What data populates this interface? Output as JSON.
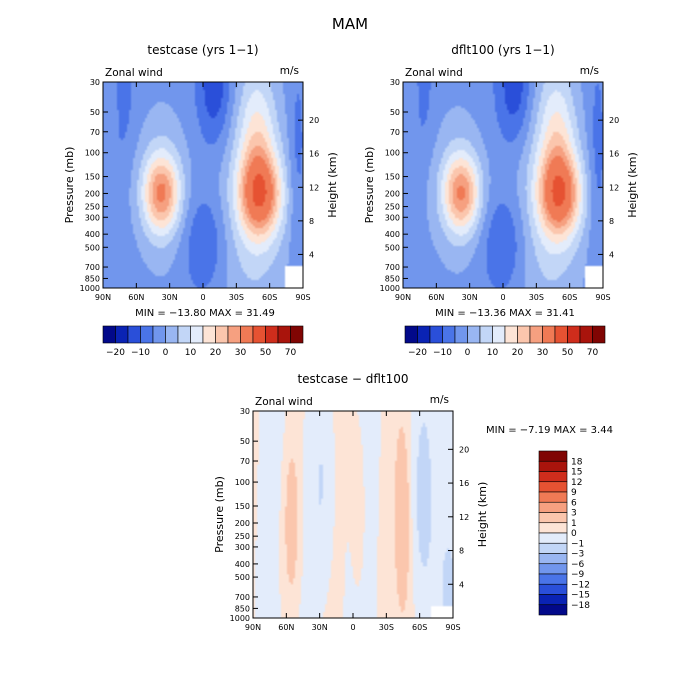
{
  "title": "MAM",
  "chart_data": [
    {
      "type": "heatmap",
      "title": "testcase (yrs 1−1)",
      "left_label": "Zonal wind",
      "units_label": "m/s",
      "xlabel": "",
      "ylabel": "Pressure (mb)",
      "ylabel_right": "Height (km)",
      "x_ticks": [
        "90N",
        "60N",
        "30N",
        "0",
        "30S",
        "60S",
        "90S"
      ],
      "p_ticks": [
        "30",
        "50",
        "70",
        "100",
        "150",
        "200",
        "250",
        "300",
        "400",
        "500",
        "700",
        "850",
        "1000"
      ],
      "p_values": [
        30,
        50,
        70,
        100,
        150,
        200,
        250,
        300,
        400,
        500,
        700,
        850,
        1000
      ],
      "h_ticks": [
        "4",
        "8",
        "12",
        "16",
        "20"
      ],
      "h_values": [
        4,
        8,
        12,
        16,
        20
      ],
      "stats_text": "MIN = −13.80   MAX =   31.49",
      "colorbar_labels": [
        "−20",
        "−10",
        "0",
        "10",
        "20",
        "30",
        "50",
        "70"
      ],
      "colorbar_colors": [
        "#02098a",
        "#0a23b4",
        "#2a4fd9",
        "#4a74e8",
        "#7196ed",
        "#99b6f2",
        "#c2d6f7",
        "#e3ecfb",
        "#fde4d6",
        "#fbc6ad",
        "#f6a080",
        "#f07a55",
        "#e65232",
        "#cf2d1c",
        "#a9140c",
        "#800503"
      ]
    },
    {
      "type": "heatmap",
      "title": "dflt100 (yrs 1−1)",
      "left_label": "Zonal wind",
      "units_label": "m/s",
      "xlabel": "",
      "ylabel": "Pressure (mb)",
      "ylabel_right": "Height (km)",
      "x_ticks": [
        "90N",
        "60N",
        "30N",
        "0",
        "30S",
        "60S",
        "90S"
      ],
      "p_ticks": [
        "30",
        "50",
        "70",
        "100",
        "150",
        "200",
        "250",
        "300",
        "400",
        "500",
        "700",
        "850",
        "1000"
      ],
      "p_values": [
        30,
        50,
        70,
        100,
        150,
        200,
        250,
        300,
        400,
        500,
        700,
        850,
        1000
      ],
      "h_ticks": [
        "4",
        "8",
        "12",
        "16",
        "20"
      ],
      "h_values": [
        4,
        8,
        12,
        16,
        20
      ],
      "stats_text": "MIN = −13.36   MAX =   31.41",
      "colorbar_labels": [
        "−20",
        "−10",
        "0",
        "10",
        "20",
        "30",
        "50",
        "70"
      ],
      "colorbar_colors": [
        "#02098a",
        "#0a23b4",
        "#2a4fd9",
        "#4a74e8",
        "#7196ed",
        "#99b6f2",
        "#c2d6f7",
        "#e3ecfb",
        "#fde4d6",
        "#fbc6ad",
        "#f6a080",
        "#f07a55",
        "#e65232",
        "#cf2d1c",
        "#a9140c",
        "#800503"
      ]
    },
    {
      "type": "heatmap",
      "title": "testcase − dflt100",
      "left_label": "Zonal wind",
      "units_label": "m/s",
      "xlabel": "",
      "ylabel": "Pressure (mb)",
      "ylabel_right": "Height (km)",
      "x_ticks": [
        "90N",
        "60N",
        "30N",
        "0",
        "30S",
        "60S",
        "90S"
      ],
      "p_ticks": [
        "30",
        "50",
        "70",
        "100",
        "150",
        "200",
        "250",
        "300",
        "400",
        "500",
        "700",
        "850",
        "1000"
      ],
      "p_values": [
        30,
        50,
        70,
        100,
        150,
        200,
        250,
        300,
        400,
        500,
        700,
        850,
        1000
      ],
      "h_ticks": [
        "4",
        "8",
        "12",
        "16",
        "20"
      ],
      "h_values": [
        4,
        8,
        12,
        16,
        20
      ],
      "stats_text": "MIN =   −7.19   MAX =    3.44",
      "colorbar_labels": [
        "18",
        "15",
        "12",
        "9",
        "6",
        "3",
        "1",
        "0",
        "−1",
        "−3",
        "−6",
        "−9",
        "−12",
        "−15",
        "−18"
      ],
      "colorbar_colors": [
        "#800503",
        "#a9140c",
        "#cf2d1c",
        "#e65232",
        "#f07a55",
        "#f6a080",
        "#fbc6ad",
        "#fde4d6",
        "#e3ecfb",
        "#c2d6f7",
        "#99b6f2",
        "#7196ed",
        "#4a74e8",
        "#2a4fd9",
        "#0a23b4",
        "#02098a"
      ]
    }
  ]
}
